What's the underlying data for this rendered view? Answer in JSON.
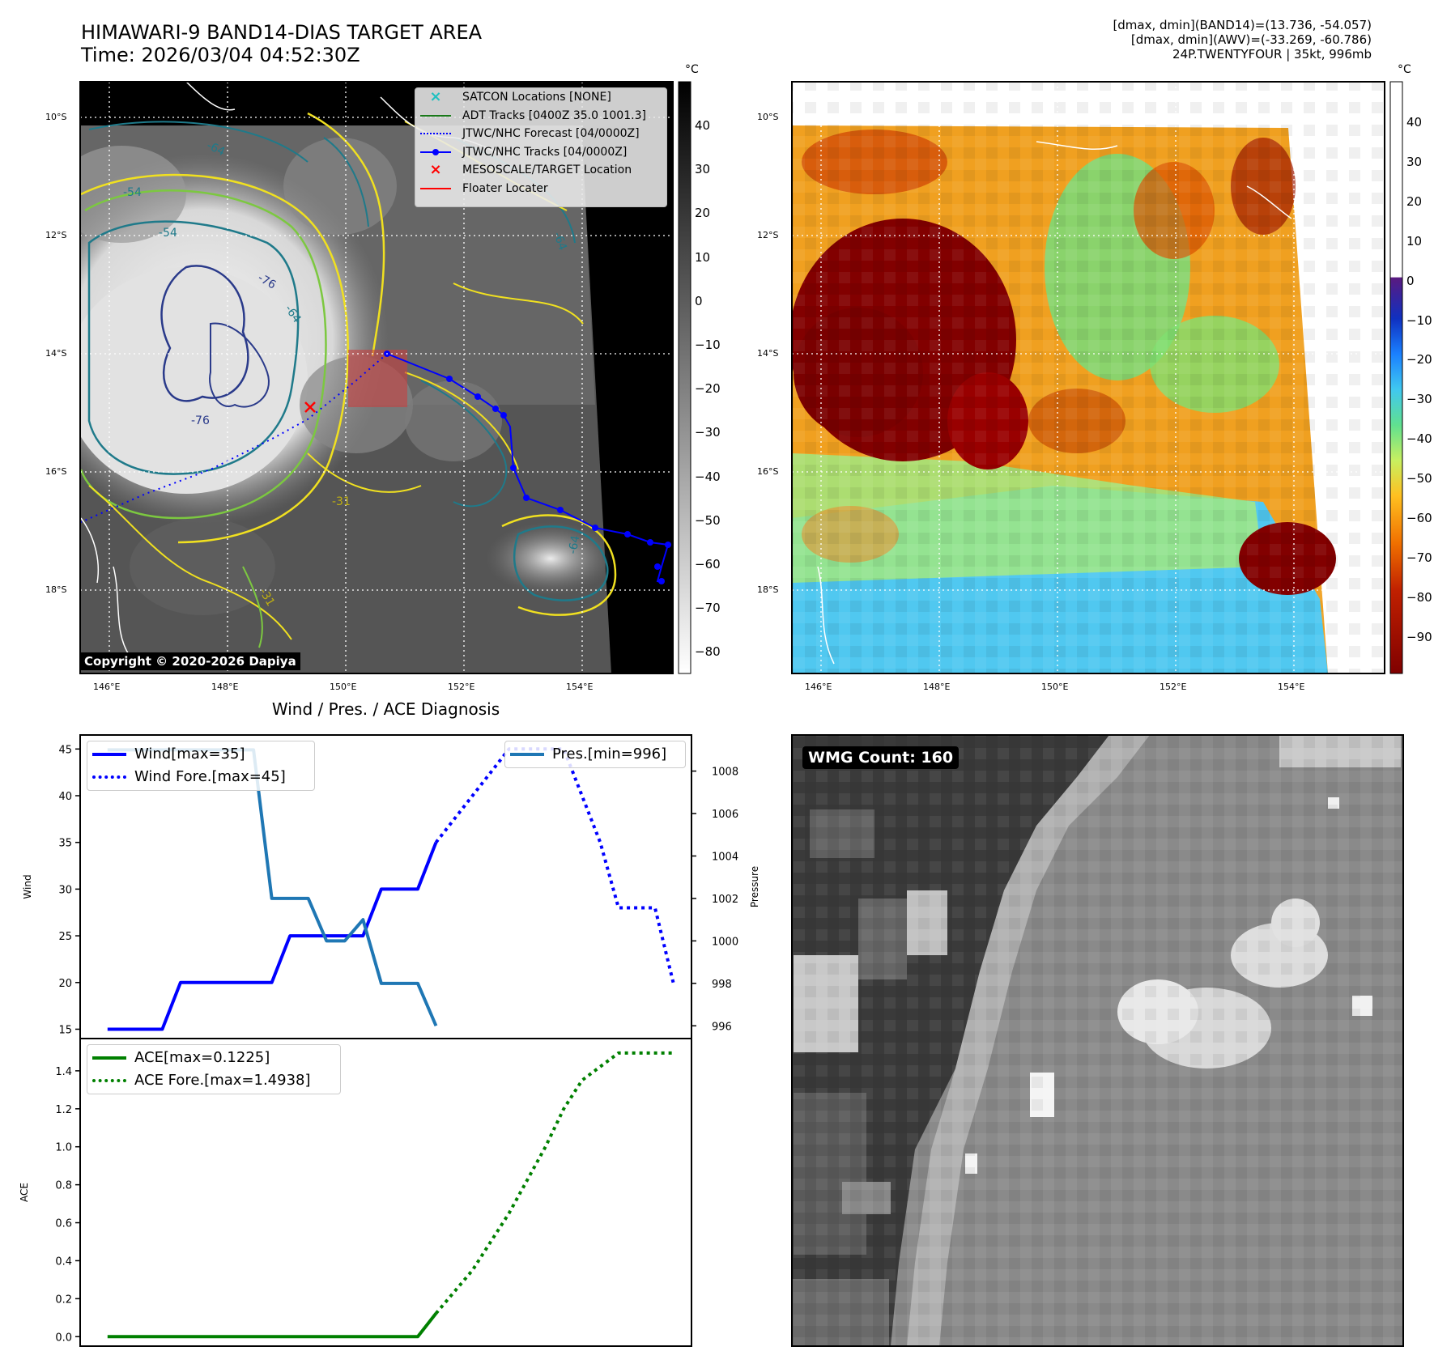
{
  "header": {
    "title_line1": "HIMAWARI-9 BAND14-DIAS TARGET AREA",
    "title_line2": "Time: 2026/03/04 04:52:30Z",
    "info_line1": "[dmax, dmin](BAND14)=(13.736, -54.057)",
    "info_line2": "[dmax, dmin](AWV)=(-33.269, -60.786)",
    "info_line3": "24P.TWENTYFOUR | 35kt, 996mb"
  },
  "ir_map": {
    "unit": "°C",
    "lat_ticks": [
      "10°S",
      "12°S",
      "14°S",
      "16°S",
      "18°S"
    ],
    "lon_ticks": [
      "146°E",
      "148°E",
      "150°E",
      "152°E",
      "154°E"
    ],
    "colorbar_ticks": [
      "40",
      "30",
      "20",
      "10",
      "0",
      "−10",
      "−20",
      "−30",
      "−40",
      "−50",
      "−60",
      "−70",
      "−80"
    ],
    "contour_labels": [
      "-64",
      "-54",
      "-54",
      "-76",
      "-64",
      "-76",
      "-64",
      "-31",
      "-31",
      "-64"
    ],
    "copyright": "Copyright © 2020-2026 Dapiya",
    "legend": [
      {
        "label": "SATCON Locations [NONE]",
        "color": "#20c0c0",
        "marker": "x"
      },
      {
        "label": "ADT Tracks [0400Z 35.0 1001.3]",
        "color": "#1a7a1a",
        "marker": "line"
      },
      {
        "label": "JTWC/NHC Forecast [04/0000Z]",
        "color": "#0000ff",
        "marker": "dotted"
      },
      {
        "label": "JTWC/NHC Tracks [04/0000Z]",
        "color": "#0000ff",
        "marker": "line-dot"
      },
      {
        "label": "MESOSCALE/TARGET Location",
        "color": "#ff0000",
        "marker": "x"
      },
      {
        "label": "Floater Locater",
        "color": "#ff0000",
        "marker": "line"
      }
    ]
  },
  "wv_map": {
    "unit": "°C",
    "lat_ticks": [
      "10°S",
      "12°S",
      "14°S",
      "16°S",
      "18°S"
    ],
    "lon_ticks": [
      "146°E",
      "148°E",
      "150°E",
      "152°E",
      "154°E"
    ],
    "colorbar_ticks": [
      "40",
      "30",
      "20",
      "10",
      "0",
      "−10",
      "−20",
      "−30",
      "−40",
      "−50",
      "−60",
      "−70",
      "−80",
      "−90"
    ]
  },
  "wmg": {
    "label": "WMG Count: 160"
  },
  "chart_data": [
    {
      "type": "line",
      "title": "Wind / Pres. / ACE Diagnosis",
      "ylabel": "Wind",
      "ylabel_right": "Pressure",
      "ylim": [
        14,
        46.5
      ],
      "ylim_right": [
        995.4,
        1009.7
      ],
      "yticks": [
        15,
        20,
        25,
        30,
        35,
        40,
        45
      ],
      "yticks_right": [
        996,
        998,
        1000,
        1002,
        1004,
        1006,
        1008
      ],
      "x": [
        0,
        1,
        2,
        3,
        4,
        5,
        6,
        7,
        8,
        9,
        10,
        11,
        12,
        13,
        14,
        15,
        16,
        17,
        18,
        19,
        20
      ],
      "series": [
        {
          "name": "Wind[max=35]",
          "color": "#0000ff",
          "style": "solid",
          "x": [
            0,
            3,
            4,
            9,
            10,
            13,
            14,
            15,
            16,
            17,
            18
          ],
          "values": [
            15,
            15,
            20,
            20,
            25,
            25,
            25,
            30,
            30,
            30,
            35
          ]
        },
        {
          "name": "Wind Fore.[max=45]",
          "color": "#0000ff",
          "style": "dotted",
          "x": [
            18,
            20,
            22,
            24,
            25,
            26,
            27,
            28,
            29,
            30,
            31
          ],
          "values": [
            35,
            40,
            45,
            45,
            45,
            40,
            35,
            28,
            28,
            28,
            20
          ]
        },
        {
          "name": "Pres.[min=996]",
          "color": "#1f77b4",
          "style": "solid",
          "x": [
            0,
            7,
            8,
            9,
            10,
            11,
            12,
            13,
            14,
            15,
            16,
            17,
            18
          ],
          "values": [
            1009,
            1009,
            1009,
            1002,
            1002,
            1002,
            1000,
            1000,
            1001,
            998,
            998,
            998,
            996
          ]
        }
      ]
    },
    {
      "type": "line",
      "ylabel": "ACE",
      "ylim": [
        -0.05,
        1.57
      ],
      "yticks": [
        0.0,
        0.2,
        0.4,
        0.6,
        0.8,
        1.0,
        1.2,
        1.4
      ],
      "series": [
        {
          "name": "ACE[max=0.1225]",
          "color": "#008000",
          "style": "solid",
          "x": [
            0,
            17,
            18
          ],
          "values": [
            0,
            0,
            0.1225
          ]
        },
        {
          "name": "ACE Fore.[max=1.4938]",
          "color": "#008000",
          "style": "dotted",
          "x": [
            18,
            20,
            22,
            24,
            25,
            26,
            28,
            30,
            31
          ],
          "values": [
            0.1225,
            0.35,
            0.65,
            1.0,
            1.2,
            1.35,
            1.4938,
            1.4938,
            1.4938
          ]
        }
      ]
    }
  ]
}
